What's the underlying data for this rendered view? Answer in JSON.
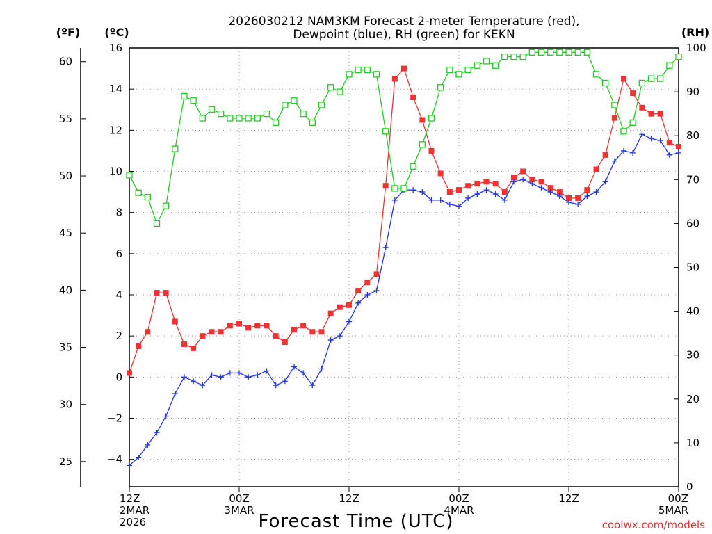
{
  "chart_data": {
    "type": "line",
    "title": [
      "2026030212 NAM3KM Forecast 2-meter Temperature (red),",
      "Dewpoint (blue), RH (green) for KEKN"
    ],
    "xlabel": "Forecast Time (UTC)",
    "credit": "coolwx.com/models",
    "axes": {
      "y_fahrenheit": {
        "unit_label": "(ºF)",
        "ticks": [
          25,
          30,
          35,
          40,
          45,
          50,
          55,
          60
        ],
        "range": [
          22.8,
          61.2
        ]
      },
      "y_celsius": {
        "unit_label": "(ºC)",
        "ticks": [
          -4,
          -2,
          0,
          2,
          4,
          6,
          8,
          10,
          12,
          14,
          16
        ],
        "range": [
          -5.33,
          16
        ]
      },
      "y_rh": {
        "unit_label": "(RH)",
        "ticks": [
          0,
          10,
          20,
          30,
          40,
          50,
          60,
          70,
          80,
          90,
          100
        ],
        "range": [
          0,
          100
        ]
      },
      "x_hours": {
        "range": [
          0,
          60
        ],
        "ticks": [
          {
            "hour": 0,
            "lines": [
              "12Z",
              "2MAR",
              "2026"
            ]
          },
          {
            "hour": 12,
            "lines": [
              "00Z",
              "3MAR"
            ]
          },
          {
            "hour": 24,
            "lines": [
              "12Z"
            ]
          },
          {
            "hour": 36,
            "lines": [
              "00Z",
              "4MAR"
            ]
          },
          {
            "hour": 48,
            "lines": [
              "12Z"
            ]
          },
          {
            "hour": 60,
            "lines": [
              "00Z",
              "5MAR"
            ]
          }
        ]
      }
    },
    "series": [
      {
        "name": "2-meter Temperature",
        "unit": "°C",
        "color": "#ee3333",
        "marker": "filled-square",
        "values": [
          0.2,
          1.5,
          2.2,
          4.1,
          4.1,
          2.7,
          1.6,
          1.4,
          2.0,
          2.2,
          2.2,
          2.5,
          2.6,
          2.4,
          2.5,
          2.5,
          2.0,
          1.7,
          2.3,
          2.5,
          2.2,
          2.2,
          3.1,
          3.4,
          3.5,
          4.2,
          4.6,
          5.0,
          9.3,
          14.5,
          15.0,
          13.6,
          12.5,
          11.0,
          9.9,
          9.0,
          9.1,
          9.3,
          9.4,
          9.5,
          9.4,
          9.0,
          9.7,
          10.0,
          9.6,
          9.5,
          9.2,
          9.0,
          8.7,
          8.7,
          9.1,
          10.1,
          10.8,
          12.6,
          14.5,
          13.8,
          13.1,
          12.8,
          12.8,
          11.4,
          11.2
        ]
      },
      {
        "name": "Dewpoint",
        "unit": "°C",
        "color": "#2233ee",
        "marker": "plus",
        "values": [
          -4.3,
          -3.9,
          -3.3,
          -2.7,
          -1.9,
          -0.8,
          0.0,
          -0.2,
          -0.4,
          0.1,
          0.0,
          0.2,
          0.2,
          0.0,
          0.1,
          0.3,
          -0.4,
          -0.2,
          0.5,
          0.2,
          -0.4,
          0.4,
          1.8,
          2.0,
          2.7,
          3.6,
          4.0,
          4.2,
          6.3,
          8.6,
          9.1,
          9.1,
          9.0,
          8.6,
          8.6,
          8.4,
          8.3,
          8.7,
          8.9,
          9.1,
          8.9,
          8.6,
          9.5,
          9.6,
          9.4,
          9.2,
          9.0,
          8.8,
          8.5,
          8.4,
          8.8,
          9.0,
          9.5,
          10.5,
          11.0,
          10.9,
          11.8,
          11.6,
          11.5,
          10.8,
          10.9
        ]
      },
      {
        "name": "Relative Humidity",
        "unit": "%",
        "color": "#22cc22",
        "marker": "open-square",
        "values": [
          71,
          67,
          66,
          60,
          64,
          77,
          89,
          88,
          84,
          86,
          85,
          84,
          84,
          84,
          84,
          85,
          83,
          87,
          88,
          85,
          83,
          87,
          91,
          90,
          94,
          95,
          95,
          94,
          81,
          68,
          68,
          73,
          78,
          84,
          91,
          95,
          94,
          95,
          96,
          97,
          96,
          98,
          98,
          98,
          99,
          99,
          99,
          99,
          99,
          99,
          99,
          94,
          92,
          87,
          81,
          83,
          92,
          93,
          93,
          96,
          98
        ]
      }
    ]
  }
}
